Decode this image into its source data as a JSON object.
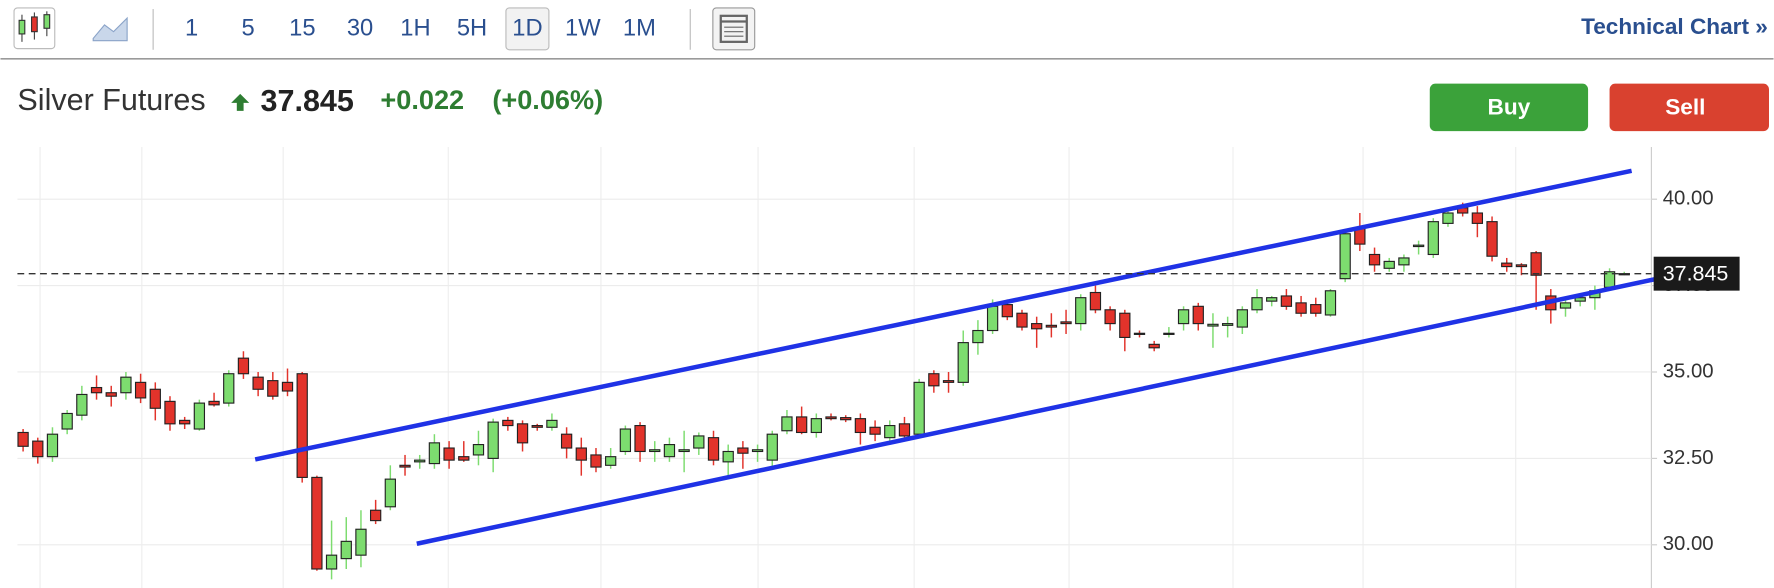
{
  "toolbar": {
    "intervals": [
      "1",
      "5",
      "15",
      "30",
      "1H",
      "5H",
      "1D",
      "1W",
      "1M"
    ],
    "active_interval": "1D",
    "link": "Technical Chart »"
  },
  "quote": {
    "name": "Silver Futures",
    "change": "+0.022",
    "change_pct": "(+0.06%)"
  },
  "buttons": {
    "buy": "Buy",
    "sell": "Sell"
  },
  "chart_data": {
    "type": "candlestick",
    "last_price": 37.845,
    "ylim": [
      28.75,
      41.51
    ],
    "yticks": [
      {
        "value": 30,
        "label": "30.00"
      },
      {
        "value": 32.5,
        "label": "32.50"
      },
      {
        "value": 35,
        "label": "35.00"
      },
      {
        "value": 37.5,
        "label": "37.50"
      },
      {
        "value": 40,
        "label": "40.00"
      }
    ],
    "grid": true,
    "up_color": "#7ddc6f",
    "down_color": "#e2332b",
    "trendline_color": "#1f32e6",
    "candles": {
      "open": [
        33.25,
        33.0,
        32.55,
        33.35,
        33.75,
        34.55,
        34.4,
        34.4,
        34.7,
        34.5,
        34.15,
        33.6,
        33.35,
        34.15,
        34.1,
        35.4,
        34.85,
        34.75,
        34.7,
        34.95,
        31.95,
        29.3,
        29.6,
        29.7,
        31.0,
        31.1,
        32.3,
        32.4,
        32.35,
        32.8,
        32.55,
        32.6,
        32.5,
        33.6,
        33.5,
        33.45,
        33.4,
        33.2,
        32.8,
        32.6,
        32.3,
        32.7,
        33.45,
        32.7,
        32.55,
        32.7,
        32.8,
        33.1,
        32.4,
        32.8,
        32.7,
        32.45,
        33.3,
        33.7,
        33.25,
        33.7,
        33.68,
        33.65,
        33.4,
        33.1,
        33.5,
        33.2,
        34.95,
        34.75,
        34.7,
        35.85,
        36.2,
        36.95,
        36.7,
        36.4,
        36.35,
        36.45,
        36.4,
        37.3,
        36.8,
        36.7,
        36.12,
        35.8,
        36.1,
        36.4,
        36.9,
        36.33,
        36.35,
        36.3,
        36.8,
        37.05,
        37.2,
        37.0,
        36.95,
        36.65,
        37.7,
        39.15,
        38.4,
        38.0,
        38.1,
        38.63,
        38.4,
        39.3,
        39.75,
        39.6,
        39.35,
        38.15,
        38.1,
        38.45,
        37.2,
        36.85,
        37.05,
        37.15,
        37.45,
        37.84
      ],
      "high": [
        33.35,
        33.1,
        33.4,
        33.9,
        34.6,
        34.9,
        34.6,
        35.0,
        34.95,
        34.7,
        34.3,
        33.7,
        34.2,
        34.4,
        35.05,
        35.6,
        35.0,
        35.0,
        35.1,
        35.0,
        32.0,
        30.7,
        30.8,
        31.0,
        31.3,
        32.3,
        32.6,
        32.6,
        33.2,
        33.0,
        33.0,
        33.3,
        33.65,
        33.7,
        33.6,
        33.5,
        33.8,
        33.4,
        33.1,
        32.8,
        32.8,
        33.45,
        33.55,
        33.0,
        33.1,
        33.3,
        33.25,
        33.3,
        32.9,
        33.0,
        32.9,
        33.3,
        33.9,
        34.0,
        33.8,
        33.8,
        33.75,
        33.8,
        33.6,
        33.6,
        33.7,
        34.8,
        35.05,
        35.0,
        36.2,
        36.5,
        37.1,
        37.1,
        36.8,
        36.6,
        36.7,
        36.8,
        37.25,
        37.5,
        36.9,
        36.8,
        36.2,
        35.9,
        36.3,
        36.9,
        37.0,
        36.7,
        36.6,
        36.9,
        37.4,
        37.2,
        37.4,
        37.2,
        37.15,
        37.4,
        39.1,
        39.6,
        38.6,
        38.3,
        38.4,
        38.8,
        39.45,
        39.7,
        39.9,
        39.8,
        39.5,
        38.3,
        38.15,
        38.5,
        37.4,
        37.15,
        37.2,
        37.5,
        38.0,
        37.9
      ],
      "low": [
        32.7,
        32.35,
        32.4,
        33.2,
        33.6,
        34.2,
        34.0,
        34.2,
        34.1,
        33.6,
        33.3,
        33.35,
        33.3,
        34.0,
        34.0,
        34.8,
        34.3,
        34.2,
        34.3,
        31.8,
        29.25,
        29.0,
        29.3,
        29.35,
        30.6,
        31.0,
        32.0,
        32.2,
        32.2,
        32.2,
        32.4,
        32.3,
        32.1,
        33.3,
        32.7,
        33.3,
        33.3,
        32.5,
        32.0,
        32.1,
        32.2,
        32.6,
        32.4,
        32.4,
        32.4,
        32.1,
        32.6,
        32.3,
        32.0,
        32.2,
        32.4,
        32.2,
        33.2,
        33.2,
        33.1,
        33.6,
        33.55,
        32.9,
        33.0,
        32.9,
        33.0,
        33.1,
        34.4,
        34.4,
        34.6,
        35.5,
        36.1,
        36.5,
        36.2,
        35.7,
        36.0,
        36.1,
        36.2,
        36.7,
        36.2,
        35.6,
        36.0,
        35.6,
        36.0,
        36.2,
        36.2,
        35.7,
        36.0,
        36.1,
        36.7,
        36.9,
        36.8,
        36.6,
        36.6,
        36.6,
        37.6,
        38.5,
        37.9,
        37.9,
        37.9,
        38.4,
        38.3,
        39.2,
        39.5,
        38.9,
        38.2,
        37.9,
        37.8,
        36.8,
        36.4,
        36.6,
        36.9,
        36.8,
        37.4,
        37.8
      ],
      "close": [
        32.85,
        32.55,
        33.2,
        33.8,
        34.35,
        34.4,
        34.3,
        34.85,
        34.25,
        33.95,
        33.5,
        33.5,
        34.1,
        34.05,
        34.95,
        34.95,
        34.5,
        34.3,
        34.45,
        31.95,
        29.3,
        29.7,
        30.1,
        30.45,
        30.7,
        31.9,
        32.25,
        32.45,
        32.95,
        32.45,
        32.45,
        32.9,
        33.55,
        33.45,
        32.95,
        33.4,
        33.6,
        32.8,
        32.45,
        32.25,
        32.55,
        33.35,
        32.7,
        32.75,
        32.9,
        32.75,
        33.15,
        32.45,
        32.7,
        32.65,
        32.75,
        33.2,
        33.7,
        33.25,
        33.65,
        33.65,
        33.62,
        33.25,
        33.2,
        33.45,
        33.15,
        34.7,
        34.6,
        34.7,
        35.85,
        36.2,
        36.9,
        36.6,
        36.3,
        36.25,
        36.3,
        36.4,
        37.15,
        36.8,
        36.4,
        36.0,
        36.1,
        35.7,
        36.12,
        36.8,
        36.4,
        36.38,
        36.4,
        36.8,
        37.15,
        37.15,
        36.9,
        36.7,
        36.7,
        37.35,
        39.0,
        38.7,
        38.1,
        38.2,
        38.3,
        38.67,
        39.35,
        39.6,
        39.6,
        39.3,
        38.35,
        38.05,
        38.05,
        37.8,
        36.8,
        37.0,
        37.15,
        37.35,
        37.9,
        37.845
      ]
    },
    "trendlines": [
      {
        "x": [
          15.8,
          109.5
        ],
        "y": [
          32.47,
          40.82
        ]
      },
      {
        "x": [
          26.8,
          111.6
        ],
        "y": [
          30.03,
          37.73
        ]
      }
    ]
  }
}
